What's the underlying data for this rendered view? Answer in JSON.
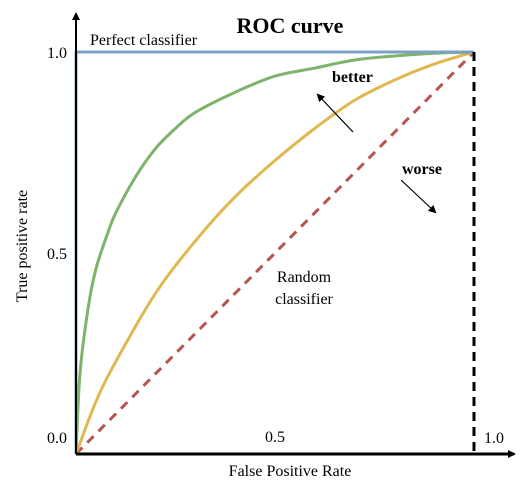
{
  "chart_data": {
    "type": "line",
    "title": "ROC curve",
    "xlabel": "False Positive Rate",
    "ylabel": "True positive rate",
    "xlim": [
      0,
      1
    ],
    "ylim": [
      0,
      1
    ],
    "x_ticks": [
      {
        "value": 0.0,
        "label": "0.0"
      },
      {
        "value": 0.5,
        "label": "0.5"
      },
      {
        "value": 1.0,
        "label": "1.0"
      }
    ],
    "y_ticks": [
      {
        "value": 0.5,
        "label": "0.5"
      },
      {
        "value": 1.0,
        "label": "1.0"
      }
    ],
    "grid": false,
    "series": [
      {
        "name": "Perfect classifier",
        "color": "#7aa0c4",
        "style": "solid",
        "x": [
          0,
          0,
          1
        ],
        "y": [
          0,
          1,
          1
        ]
      },
      {
        "name": "",
        "color": "#7db36a",
        "style": "solid",
        "x": [
          0,
          0.01,
          0.03,
          0.05,
          0.08,
          0.1,
          0.15,
          0.2,
          0.25,
          0.3,
          0.4,
          0.5,
          0.6,
          0.7,
          0.8,
          0.9,
          1.0
        ],
        "y": [
          0,
          0.2,
          0.36,
          0.46,
          0.55,
          0.6,
          0.69,
          0.76,
          0.81,
          0.85,
          0.9,
          0.94,
          0.96,
          0.98,
          0.99,
          0.997,
          1.0
        ]
      },
      {
        "name": "",
        "color": "#e0b850",
        "style": "solid",
        "x": [
          0,
          0.05,
          0.1,
          0.2,
          0.3,
          0.4,
          0.5,
          0.6,
          0.7,
          0.8,
          0.9,
          1.0
        ],
        "y": [
          0,
          0.13,
          0.23,
          0.4,
          0.53,
          0.64,
          0.73,
          0.81,
          0.88,
          0.93,
          0.97,
          1.0
        ]
      },
      {
        "name": "Random classifier",
        "color": "#b85450",
        "style": "dashed",
        "x": [
          0,
          1
        ],
        "y": [
          0,
          1
        ]
      }
    ],
    "annotations": [
      {
        "text": "Perfect classifier"
      },
      {
        "text": "better"
      },
      {
        "text": "worse"
      },
      {
        "text": "Random"
      },
      {
        "text": "classifier"
      }
    ]
  }
}
